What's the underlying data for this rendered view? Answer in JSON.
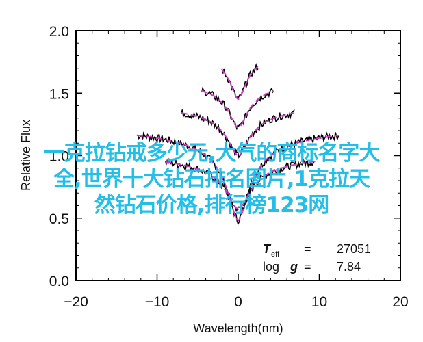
{
  "chart_data": {
    "type": "line",
    "xlabel": "Wavelength(nm)",
    "ylabel": "Relative Flux",
    "xlim": [
      -20,
      20
    ],
    "ylim": [
      0.0,
      2.0
    ],
    "xticks": [
      -20,
      -10,
      0,
      10,
      20
    ],
    "xtick_labels": [
      "−20",
      "−10",
      "0",
      "10",
      "20"
    ],
    "yticks": [
      0.0,
      0.5,
      1.0,
      1.5,
      2.0
    ],
    "ytick_labels": [
      "0.0",
      "0.5",
      "1.0",
      "1.5",
      "2.0"
    ],
    "grid": false,
    "series_color_observed": "#000000",
    "series_color_model": "#d633c8",
    "series": [
      {
        "x_range": [
          -12.5,
          12.5
        ],
        "offset": 1.2,
        "depth": 0.72,
        "width": 1.6
      },
      {
        "x_range": [
          -9,
          9.5
        ],
        "offset": 1.0,
        "depth": 0.43,
        "width": 1.8
      },
      {
        "x_range": [
          -7,
          7
        ],
        "offset": 1.4,
        "depth": 0.4,
        "width": 1.6
      },
      {
        "x_range": [
          -4.5,
          4.5
        ],
        "offset": 1.6,
        "depth": 0.38,
        "width": 1.4
      },
      {
        "x_range": [
          -2,
          2.5
        ],
        "offset": 1.85,
        "depth": 0.4,
        "width": 1.2
      }
    ],
    "annotation": {
      "teff_symbol": "T",
      "teff_subscript": "eff",
      "teff_equals": "=",
      "teff_value": "27051",
      "logg_label": "log",
      "logg_symbol": "g",
      "logg_equals": "=",
      "logg_value": "7.84"
    }
  },
  "overlay_text": {
    "line1": "一克拉钻戒多少元,大气的商标名字大",
    "line2": "全,世界十大钻石排名图片,1克拉天",
    "line3": "然钻石价格,排行榜123网"
  }
}
